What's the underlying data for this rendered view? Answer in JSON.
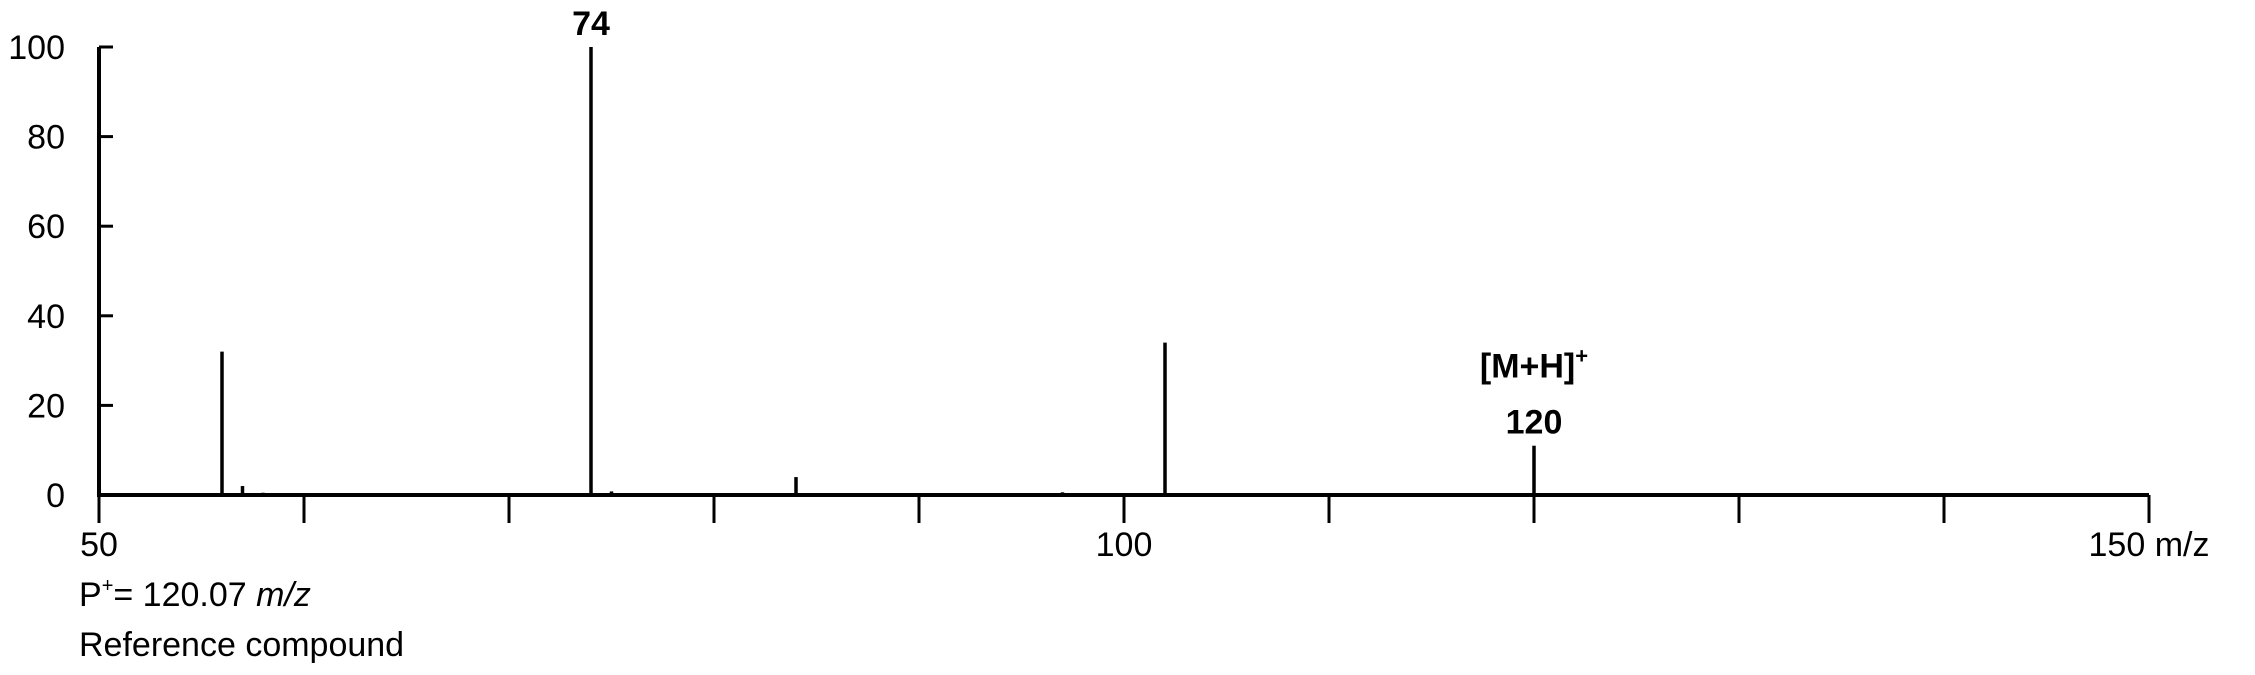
{
  "chart_data": {
    "type": "bar",
    "subtype": "mass-spectrum-stick",
    "title": "",
    "xlabel": "m/z",
    "ylabel": "",
    "xlim": [
      50,
      150
    ],
    "ylim": [
      0,
      100
    ],
    "x_tick_labels": [
      {
        "value": 50,
        "label": "50"
      },
      {
        "value": 100,
        "label": "100"
      },
      {
        "value": 150,
        "label": "150 m/z"
      }
    ],
    "x_minor_ticks": [
      60,
      70,
      80,
      90,
      110,
      120,
      130,
      140
    ],
    "y_ticks": [
      0,
      20,
      40,
      60,
      80,
      100
    ],
    "y_tick_labels": [
      "0",
      "20",
      "40",
      "60",
      "80",
      "100"
    ],
    "grid": false,
    "peaks": [
      {
        "mz": 56,
        "intensity": 32
      },
      {
        "mz": 57,
        "intensity": 2
      },
      {
        "mz": 58,
        "intensity": 0.5
      },
      {
        "mz": 74,
        "intensity": 100
      },
      {
        "mz": 75,
        "intensity": 0.8
      },
      {
        "mz": 84,
        "intensity": 4
      },
      {
        "mz": 97,
        "intensity": 0.6
      },
      {
        "mz": 102,
        "intensity": 34
      },
      {
        "mz": 120,
        "intensity": 11
      }
    ],
    "annotations": [
      {
        "mz": 74,
        "lines": [
          {
            "text": "74"
          }
        ]
      },
      {
        "mz": 120,
        "lines": [
          {
            "text": "[M+H]",
            "sup": "+"
          },
          {
            "text": "120"
          }
        ]
      }
    ]
  },
  "notes": {
    "line1_prefix": "P",
    "line1_sup": "+",
    "line1_value": "= 120.07 ",
    "line1_unit": "m/z",
    "line2": "Reference compound"
  },
  "colors": {
    "axis": "#000000",
    "peaks": "#000000",
    "background": "#ffffff"
  }
}
